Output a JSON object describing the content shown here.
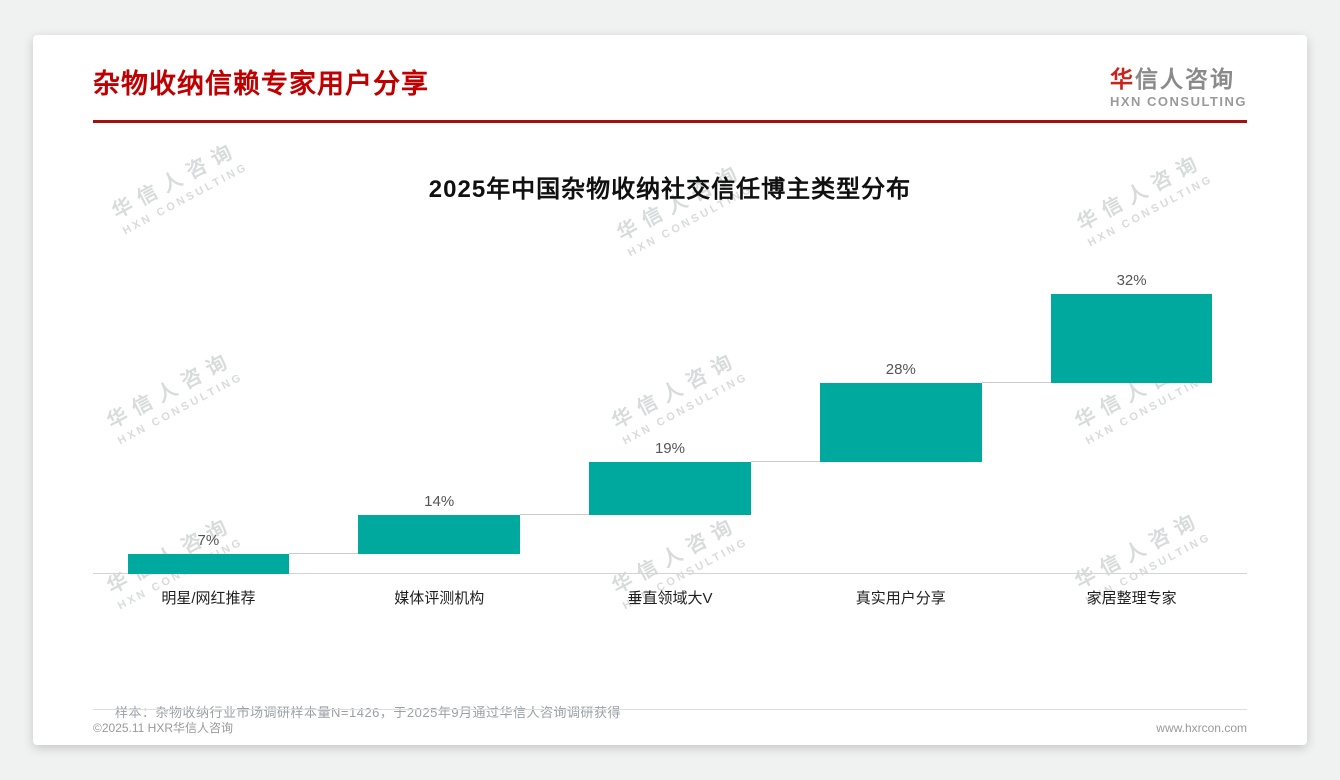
{
  "page": {
    "title": "杂物收纳信赖专家用户分享",
    "logo": {
      "cn_first": "华",
      "cn_rest": "信人咨询",
      "en": "HXN CONSULTING"
    },
    "watermark": {
      "line1": "华信人咨询",
      "line2": "HXN CONSULTING"
    },
    "note": "样本：杂物收纳行业市场调研样本量N=1426，于2025年9月通过华信人咨询调研获得",
    "footer": {
      "copyright": "©2025.11 HXR华信人咨询",
      "website": "www.hxrcon.com"
    }
  },
  "colors": {
    "accent_red": "#c00000",
    "rule_red": "#a81010",
    "bar_teal": "#00A99E",
    "connector_gray": "#cccccc"
  },
  "chart_data": {
    "type": "bar",
    "subtype": "waterfall",
    "title": "2025年中国杂物收纳社交信任博主类型分布",
    "categories": [
      "明星/网红推荐",
      "媒体评测机构",
      "垂直领域大V",
      "真实用户分享",
      "家居整理专家"
    ],
    "values": [
      7,
      14,
      19,
      28,
      32
    ],
    "labels": [
      "7%",
      "14%",
      "19%",
      "28%",
      "32%"
    ],
    "cumulative": [
      7,
      21,
      40,
      68,
      100
    ],
    "unit": "%",
    "ylim": [
      0,
      100
    ],
    "bar_color": "#00A99E",
    "grid": false,
    "legend": false,
    "xlabel": "",
    "ylabel": ""
  }
}
